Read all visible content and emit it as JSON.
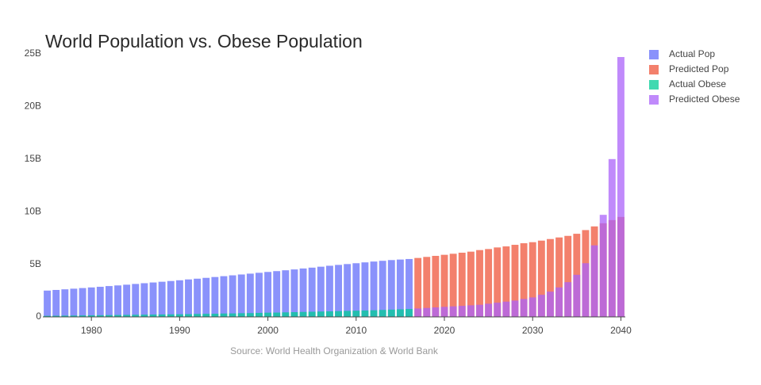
{
  "chart_data": {
    "type": "bar",
    "barmode": "overlay",
    "bar_opacity": 0.75,
    "title": "World Population vs. Obese Population",
    "annotation": "Source: World Health Organization & World Bank",
    "xlim": [
      1974.5,
      2040.5
    ],
    "xticks": [
      1980,
      1990,
      2000,
      2010,
      2020,
      2030,
      2040
    ],
    "ylim": [
      0,
      25000000000
    ],
    "yticks": [
      0,
      {
        "value": 5000000000,
        "label": "5B"
      },
      {
        "value": 10000000000,
        "label": "10B"
      },
      {
        "value": 15000000000,
        "label": "15B"
      },
      {
        "value": 20000000000,
        "label": "20B"
      },
      {
        "value": 25000000000,
        "label": "25B"
      }
    ],
    "grid": false,
    "legend": "top-right",
    "series": [
      {
        "name": "Actual Pop",
        "color": "#636efa",
        "x": [
          1975,
          1976,
          1977,
          1978,
          1979,
          1980,
          1981,
          1982,
          1983,
          1984,
          1985,
          1986,
          1987,
          1988,
          1989,
          1990,
          1991,
          1992,
          1993,
          1994,
          1995,
          1996,
          1997,
          1998,
          1999,
          2000,
          2001,
          2002,
          2003,
          2004,
          2005,
          2006,
          2007,
          2008,
          2009,
          2010,
          2011,
          2012,
          2013,
          2014,
          2015,
          2016
        ],
        "values": [
          2500000000.0,
          2560000000.0,
          2620000000.0,
          2680000000.0,
          2740000000.0,
          2800000000.0,
          2860000000.0,
          2930000000.0,
          2990000000.0,
          3060000000.0,
          3130000000.0,
          3200000000.0,
          3270000000.0,
          3340000000.0,
          3410000000.0,
          3480000000.0,
          3560000000.0,
          3630000000.0,
          3710000000.0,
          3790000000.0,
          3870000000.0,
          3950000000.0,
          4030000000.0,
          4110000000.0,
          4190000000.0,
          4270000000.0,
          4350000000.0,
          4430000000.0,
          4510000000.0,
          4600000000.0,
          4680000000.0,
          4770000000.0,
          4860000000.0,
          4940000000.0,
          5020000000.0,
          5100000000.0,
          5180000000.0,
          5260000000.0,
          5330000000.0,
          5400000000.0,
          5450000000.0,
          5500000000.0
        ]
      },
      {
        "name": "Predicted Pop",
        "color": "#ef553b",
        "x": [
          2017,
          2018,
          2019,
          2020,
          2021,
          2022,
          2023,
          2024,
          2025,
          2026,
          2027,
          2028,
          2029,
          2030,
          2031,
          2032,
          2033,
          2034,
          2035,
          2036,
          2037,
          2038,
          2039,
          2040
        ],
        "values": [
          5600000000.0,
          5700000000.0,
          5800000000.0,
          5900000000.0,
          6000000000.0,
          6100000000.0,
          6200000000.0,
          6350000000.0,
          6450000000.0,
          6600000000.0,
          6700000000.0,
          6850000000.0,
          7000000000.0,
          7100000000.0,
          7250000000.0,
          7400000000.0,
          7550000000.0,
          7700000000.0,
          7900000000.0,
          8250000000.0,
          8600000000.0,
          8900000000.0,
          9200000000.0,
          9500000000.0
        ]
      },
      {
        "name": "Actual Obese",
        "color": "#00cc96",
        "x": [
          1975,
          1976,
          1977,
          1978,
          1979,
          1980,
          1981,
          1982,
          1983,
          1984,
          1985,
          1986,
          1987,
          1988,
          1989,
          1990,
          1991,
          1992,
          1993,
          1994,
          1995,
          1996,
          1997,
          1998,
          1999,
          2000,
          2001,
          2002,
          2003,
          2004,
          2005,
          2006,
          2007,
          2008,
          2009,
          2010,
          2011,
          2012,
          2013,
          2014,
          2015,
          2016
        ],
        "values": [
          100000000.0,
          110000000.0,
          120000000.0,
          130000000.0,
          140000000.0,
          150000000.0,
          160000000.0,
          170000000.0,
          180000000.0,
          190000000.0,
          200000000.0,
          210000000.0,
          220000000.0,
          230000000.0,
          240000000.0,
          250000000.0,
          260000000.0,
          280000000.0,
          290000000.0,
          300000000.0,
          320000000.0,
          330000000.0,
          350000000.0,
          360000000.0,
          380000000.0,
          400000000.0,
          410000000.0,
          430000000.0,
          450000000.0,
          470000000.0,
          490000000.0,
          510000000.0,
          530000000.0,
          550000000.0,
          570000000.0,
          590000000.0,
          610000000.0,
          630000000.0,
          660000000.0,
          690000000.0,
          720000000.0,
          750000000.0
        ]
      },
      {
        "name": "Predicted Obese",
        "color": "#ab63fa",
        "x": [
          2017,
          2018,
          2019,
          2020,
          2021,
          2022,
          2023,
          2024,
          2025,
          2026,
          2027,
          2028,
          2029,
          2030,
          2031,
          2032,
          2033,
          2034,
          2035,
          2036,
          2037,
          2038,
          2039,
          2040
        ],
        "values": [
          800000000.0,
          850000000.0,
          900000000.0,
          950000000.0,
          1000000000.0,
          1050000000.0,
          1100000000.0,
          1150000000.0,
          1250000000.0,
          1350000000.0,
          1450000000.0,
          1550000000.0,
          1700000000.0,
          1850000000.0,
          2100000000.0,
          2400000000.0,
          2800000000.0,
          3300000000.0,
          4000000000.0,
          5100000000.0,
          6800000000.0,
          9700000000.0,
          15000000000.0,
          24700000000.0
        ]
      }
    ]
  }
}
